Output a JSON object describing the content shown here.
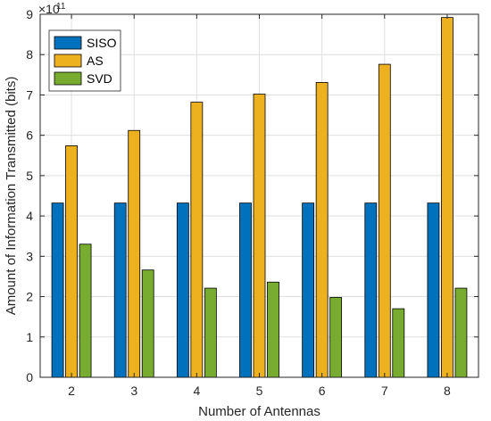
{
  "chart_data": {
    "type": "bar",
    "title": "",
    "xlabel": "Number of Antennas",
    "ylabel": "Amount of Information Transmitted (bits)",
    "y_exponent_label": "×10",
    "y_exponent": "11",
    "categories": [
      "2",
      "3",
      "4",
      "5",
      "6",
      "7",
      "8"
    ],
    "ylim": [
      0,
      9
    ],
    "yticks": [
      "0",
      "1",
      "2",
      "3",
      "4",
      "5",
      "6",
      "7",
      "8",
      "9"
    ],
    "grid": true,
    "legend_position": "top-left",
    "series": [
      {
        "name": "SISO",
        "color": "#0072bd",
        "values": [
          4.32,
          4.32,
          4.32,
          4.32,
          4.32,
          4.32,
          4.32
        ]
      },
      {
        "name": "AS",
        "color": "#edb120",
        "values": [
          5.74,
          6.12,
          6.82,
          7.02,
          7.31,
          7.76,
          8.92
        ]
      },
      {
        "name": "SVD",
        "color": "#77ac30",
        "values": [
          3.3,
          2.66,
          2.21,
          2.36,
          1.98,
          1.7,
          2.21
        ]
      }
    ]
  }
}
